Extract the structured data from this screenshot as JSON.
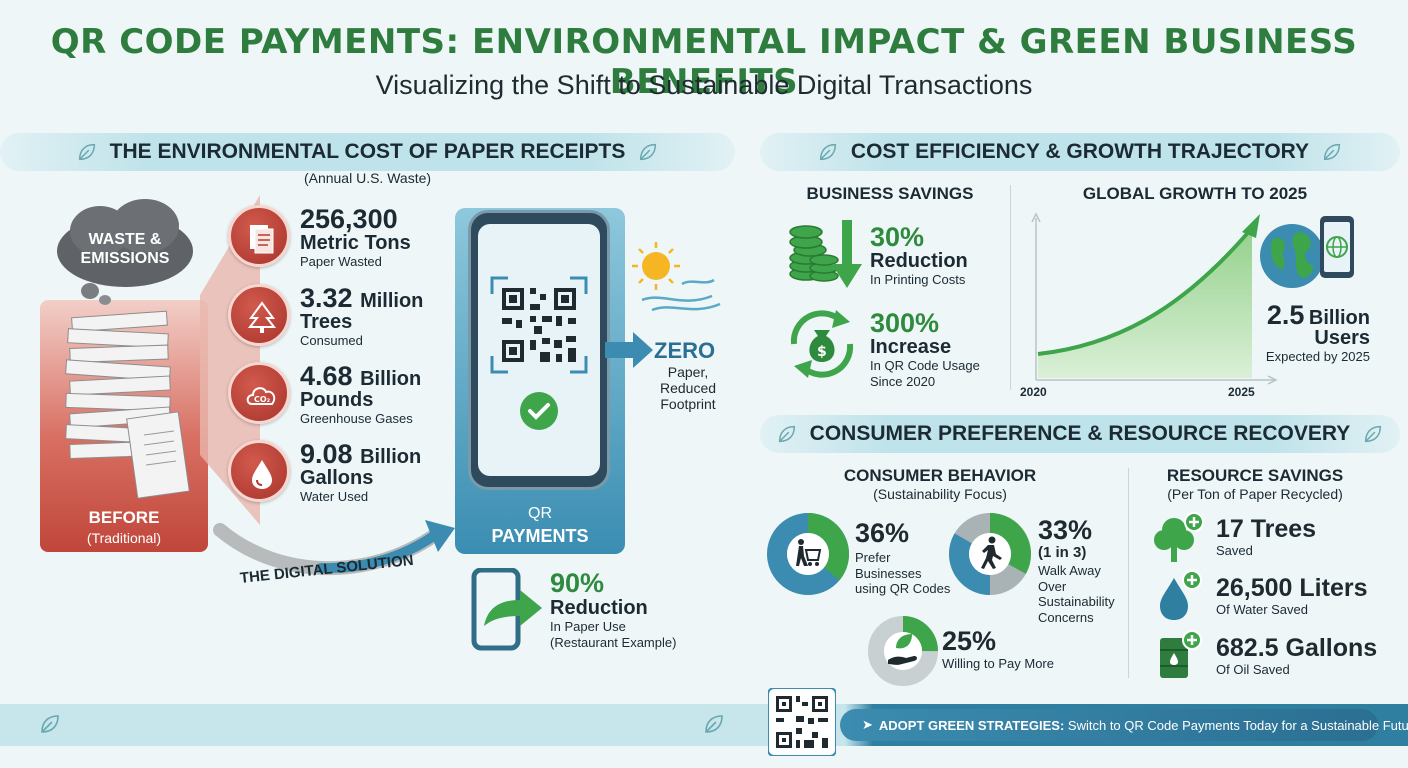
{
  "title": "QR CODE PAYMENTS: ENVIRONMENTAL IMPACT & GREEN BUSINESS BENEFITS",
  "subtitle": "Visualizing the Shift to Sustainable Digital Transactions",
  "colors": {
    "green": "#2e7d3e",
    "red": "#b8392f",
    "blue": "#3b8cb0",
    "teal_banner": "#bfe3ea"
  },
  "paper": {
    "banner": "THE ENVIRONMENTAL COST OF PAPER RECEIPTS",
    "subtitle": "(Annual U.S. Waste)",
    "cloud": "WASTE & EMISSIONS",
    "before_title": "BEFORE",
    "before_sub": "(Traditional)",
    "stats": [
      {
        "icon": "document-icon",
        "value": "256,300",
        "unit": "",
        "line2": "Metric Tons",
        "label": "Paper Wasted"
      },
      {
        "icon": "tree-icon",
        "value": "3.32",
        "unit": "Million",
        "line2": "Trees",
        "label": "Consumed"
      },
      {
        "icon": "co2-cloud-icon",
        "value": "4.68",
        "unit": "Billion",
        "line2": "Pounds",
        "label": "Greenhouse Gases"
      },
      {
        "icon": "water-drop-icon",
        "value": "9.08",
        "unit": "Billion",
        "line2": "Gallons",
        "label": "Water Used"
      }
    ],
    "arrow_label": "THE DIGITAL SOLUTION",
    "phone_label_1": "QR",
    "phone_label_2": "PAYMENTS",
    "zero_title": "ZERO",
    "zero_sub_1": "Paper,",
    "zero_sub_2": "Reduced",
    "zero_sub_3": "Footprint",
    "reduction_value": "90%",
    "reduction_title": "Reduction",
    "reduction_sub_1": "In Paper Use",
    "reduction_sub_2": "(Restaurant Example)"
  },
  "cost": {
    "banner": "COST EFFICIENCY & GROWTH TRAJECTORY",
    "savings_head": "BUSINESS SAVINGS",
    "savings": [
      {
        "icon": "coins-down-icon",
        "value": "30%",
        "title": "Reduction",
        "sub_1": "In Printing Costs",
        "sub_2": ""
      },
      {
        "icon": "money-bag-cycle-icon",
        "value": "300%",
        "title": "Increase",
        "sub_1": "In QR Code Usage",
        "sub_2": "Since 2020"
      }
    ],
    "growth_head": "GLOBAL GROWTH TO 2025",
    "growth_value": "2.5",
    "growth_unit": "Billion",
    "growth_title": "Users",
    "growth_sub": "Expected by 2025"
  },
  "chart_data": {
    "type": "area",
    "x": [
      "2020",
      "2025"
    ],
    "series": [
      {
        "values": [
          0.4,
          2.5
        ]
      }
    ],
    "title": "GLOBAL GROWTH TO 2025",
    "xlabel": "",
    "ylabel": ""
  },
  "consumer": {
    "banner": "CONSUMER PREFERENCE & RESOURCE RECOVERY",
    "behavior_head": "CONSUMER BEHAVIOR",
    "behavior_sub": "(Sustainability Focus)",
    "items": [
      {
        "icon": "shopper-cart-icon",
        "value": "36%",
        "pct": 36,
        "l1": "Prefer",
        "l2": "Businesses",
        "l3": "using QR Codes",
        "l4": ""
      },
      {
        "icon": "walking-person-icon",
        "value": "33%",
        "pct": 33,
        "l1": "(1 in 3)",
        "l2": "Walk Away",
        "l3": "Over",
        "l4": "Sustainability",
        "l5": "Concerns"
      },
      {
        "icon": "hand-leaf-icon",
        "value": "25%",
        "pct": 25,
        "l1": "Willing to Pay More"
      }
    ],
    "resource_head": "RESOURCE SAVINGS",
    "resource_sub": "(Per Ton of Paper Recycled)",
    "resources": [
      {
        "icon": "tree-plus-icon",
        "value": "17 Trees",
        "label": "Saved"
      },
      {
        "icon": "water-plus-icon",
        "value": "26,500 Liters",
        "label": "Of Water Saved"
      },
      {
        "icon": "oil-barrel-plus-icon",
        "value": "682.5 Gallons",
        "label": "Of Oil Saved"
      }
    ]
  },
  "footer": {
    "cta_bold": "ADOPT GREEN STRATEGIES:",
    "cta_text": "Switch to QR Code Payments Today for a Sustainable Future."
  }
}
